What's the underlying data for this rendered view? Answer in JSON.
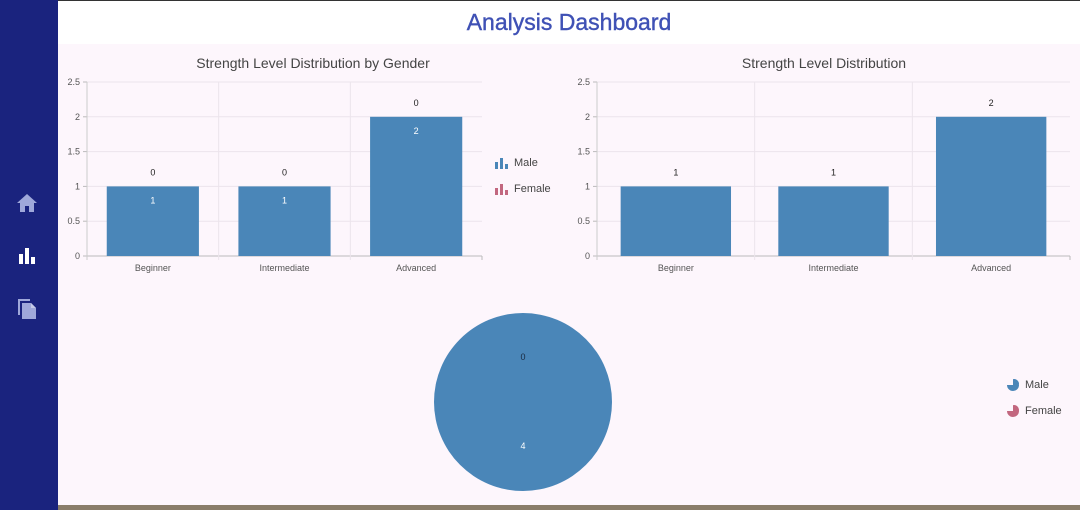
{
  "header": {
    "title": "Analysis Dashboard"
  },
  "sidebar": {
    "items": [
      {
        "icon": "home-icon"
      },
      {
        "icon": "bar-chart-icon"
      },
      {
        "icon": "copy-file-icon"
      }
    ]
  },
  "colors": {
    "male": "#4a86b8",
    "female": "#c2677f",
    "sidebar": "#1a237e",
    "title": "#3f51b5"
  },
  "chart_data": [
    {
      "type": "bar",
      "title": "Strength Level Distribution by Gender",
      "categories": [
        "Beginner",
        "Intermediate",
        "Advanced"
      ],
      "series": [
        {
          "name": "Male",
          "values": [
            1,
            1,
            2
          ]
        },
        {
          "name": "Female",
          "values": [
            0,
            0,
            0
          ]
        }
      ],
      "ylim": [
        0,
        2.5
      ],
      "yticks": [
        "0",
        "0.5",
        "1",
        "1.5",
        "2",
        "2.5"
      ],
      "grid": true,
      "legend": "right"
    },
    {
      "type": "bar",
      "title": "Strength Level Distribution",
      "categories": [
        "Beginner",
        "Intermediate",
        "Advanced"
      ],
      "series": [
        {
          "values": [
            1,
            1,
            2
          ]
        }
      ],
      "ylim": [
        0,
        2.5
      ],
      "yticks": [
        "0",
        "0.5",
        "1",
        "1.5",
        "2",
        "2.5"
      ],
      "grid": true
    },
    {
      "type": "pie",
      "series": [
        {
          "name": "Male",
          "value": 4
        },
        {
          "name": "Female",
          "value": 0
        }
      ],
      "labels": [
        "4",
        "0"
      ],
      "legend": "right"
    }
  ]
}
